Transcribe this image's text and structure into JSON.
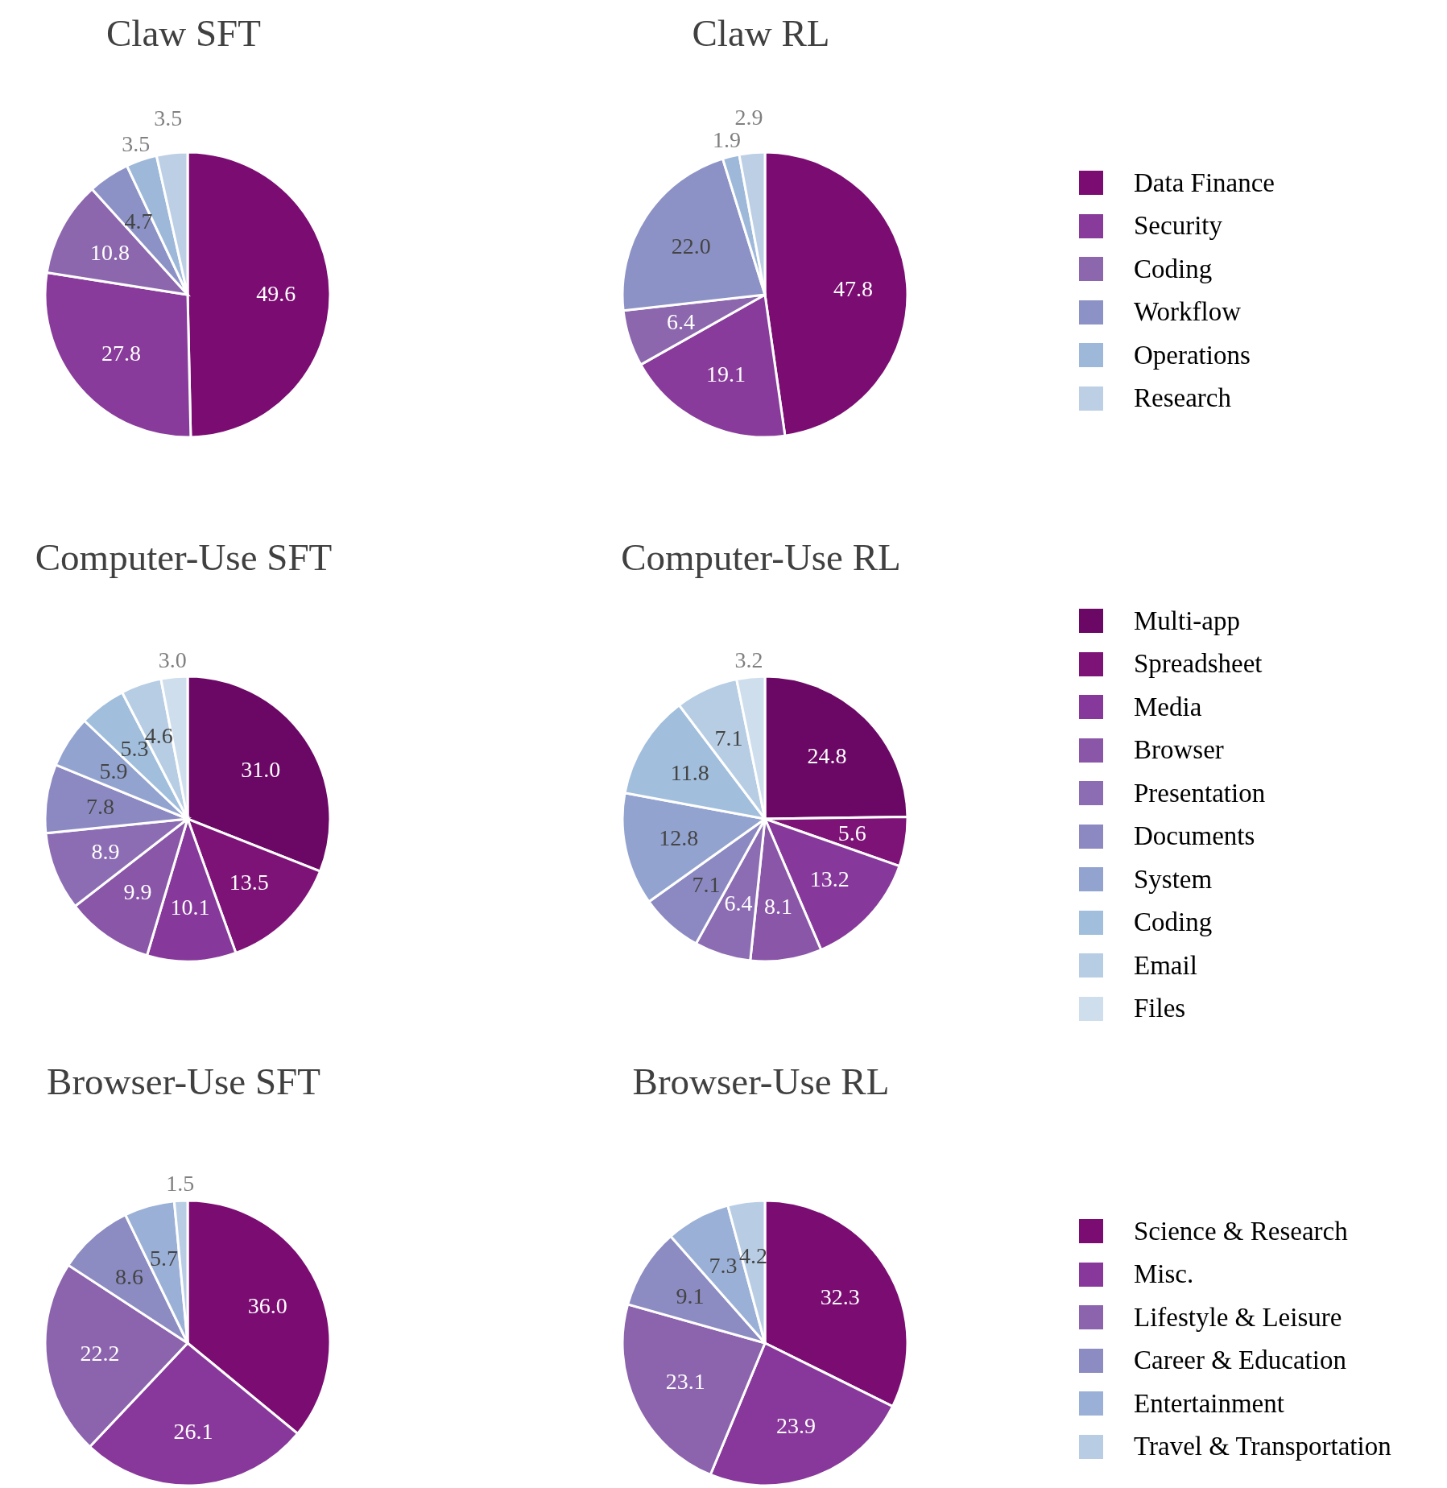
{
  "chart_data": [
    {
      "type": "pie",
      "title": "Claw SFT",
      "categories": [
        null,
        null,
        null,
        null,
        null,
        null
      ],
      "values": [
        49.6,
        27.8,
        10.8,
        4.7,
        3.5,
        3.5
      ],
      "value_labels": [
        "49.6",
        "27.8",
        "10.8",
        "4.7",
        "3.5",
        "3.5"
      ],
      "colors": [
        "#7b0c72",
        "#883b9a",
        "#8c67ad",
        "#8c92c5",
        "#9db8d9",
        "#bccfe5"
      ]
    },
    {
      "type": "pie",
      "title": "Claw RL",
      "categories": [
        "Data Finance",
        "Security",
        "Coding",
        "Workflow",
        "Operations",
        "Research"
      ],
      "values": [
        47.8,
        19.1,
        6.4,
        22.0,
        1.9,
        2.9
      ],
      "value_labels": [
        "47.8",
        "19.1",
        "6.4",
        "22.0",
        "1.9",
        "2.9"
      ],
      "colors": [
        "#7b0c72",
        "#883b9a",
        "#8c67ad",
        "#8c92c5",
        "#9db8d9",
        "#bccfe5"
      ],
      "legend": "right"
    },
    {
      "type": "pie",
      "title": "Computer-Use SFT",
      "categories": [
        null,
        null,
        null,
        null,
        null,
        null,
        null,
        null,
        null,
        null
      ],
      "values": [
        31.0,
        13.5,
        10.1,
        9.9,
        8.9,
        7.8,
        5.9,
        5.3,
        4.6,
        3.0
      ],
      "value_labels": [
        "31.0",
        "13.5",
        "10.1",
        "9.9",
        "8.9",
        "7.8",
        "5.9",
        "5.3",
        "4.6",
        "3.0"
      ],
      "colors": [
        "#6b0865",
        "#7e1377",
        "#86399a",
        "#8a56a8",
        "#8c6db3",
        "#8c89c2",
        "#93a3d0",
        "#a1bedc",
        "#b6cde4",
        "#cfdeec"
      ]
    },
    {
      "type": "pie",
      "title": "Computer-Use RL",
      "categories": [
        "Multi-app",
        "Spreadsheet",
        "Media",
        "Browser",
        "Presentation",
        "Documents",
        "System",
        "Coding",
        "Email",
        "Files"
      ],
      "values": [
        24.8,
        5.6,
        13.2,
        8.1,
        6.4,
        7.1,
        12.8,
        11.8,
        7.1,
        3.2
      ],
      "value_labels": [
        "24.8",
        "5.6",
        "13.2",
        "8.1",
        "6.4",
        "7.1",
        "12.8",
        "11.8",
        "7.1",
        "3.2"
      ],
      "colors": [
        "#6b0865",
        "#7e1377",
        "#86399a",
        "#8a56a8",
        "#8c6db3",
        "#8c89c2",
        "#93a3d0",
        "#a1bedc",
        "#b6cde4",
        "#cfdeec"
      ],
      "legend": "right"
    },
    {
      "type": "pie",
      "title": "Browser-Use SFT",
      "categories": [
        null,
        null,
        null,
        null,
        null,
        null
      ],
      "values": [
        36.0,
        26.1,
        22.2,
        8.6,
        5.7,
        1.5
      ],
      "value_labels": [
        "36.0",
        "26.1",
        "22.2",
        "8.6",
        "5.7",
        "1.5"
      ],
      "colors": [
        "#7b0c72",
        "#88389a",
        "#8c63ad",
        "#8c8bc2",
        "#9bb0d6",
        "#b8cde4"
      ]
    },
    {
      "type": "pie",
      "title": "Browser-Use RL",
      "categories": [
        "Science & Research",
        "Misc.",
        "Lifestyle & Leisure",
        "Career & Education",
        "Entertainment",
        "Travel & Transportation"
      ],
      "values": [
        32.3,
        23.9,
        23.1,
        9.1,
        7.3,
        4.2
      ],
      "value_labels": [
        "32.3",
        "23.9",
        "23.1",
        "9.1",
        "7.3",
        "4.2"
      ],
      "colors": [
        "#7b0c72",
        "#88389a",
        "#8c63ad",
        "#8c8bc2",
        "#9bb0d6",
        "#b8cde4"
      ],
      "legend": "right"
    }
  ]
}
